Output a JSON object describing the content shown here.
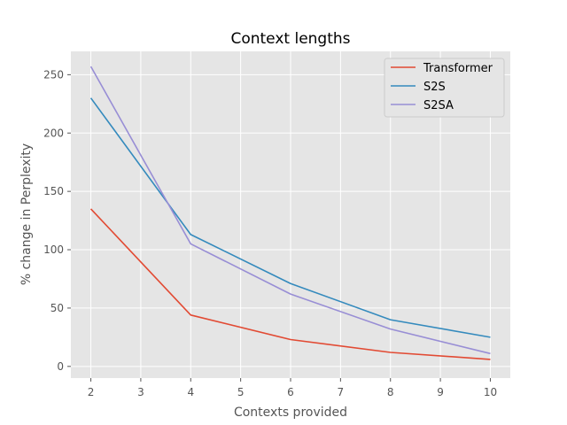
{
  "chart_data": {
    "type": "line",
    "title": "Context lengths",
    "xlabel": "Contexts provided",
    "ylabel": "% change in Perplexity",
    "x": [
      2,
      4,
      6,
      8,
      10
    ],
    "xlim": [
      1.6,
      10.4
    ],
    "ylim": [
      -10,
      270
    ],
    "xticks": [
      "2",
      "3",
      "4",
      "5",
      "6",
      "7",
      "8",
      "9",
      "10"
    ],
    "yticks": [
      "0",
      "50",
      "100",
      "150",
      "200",
      "250"
    ],
    "grid": true,
    "legend_position": "top-right",
    "series": [
      {
        "name": "Transformer",
        "color": "#E24A33",
        "values": [
          135,
          44,
          23,
          12,
          6
        ]
      },
      {
        "name": "S2S",
        "color": "#348ABD",
        "values": [
          230,
          113,
          71,
          40,
          25
        ]
      },
      {
        "name": "S2SA",
        "color": "#988ED5",
        "values": [
          257,
          105,
          62,
          32,
          11
        ]
      }
    ]
  }
}
